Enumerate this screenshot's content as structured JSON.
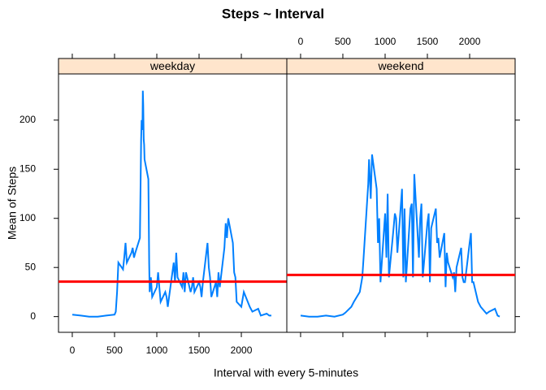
{
  "chart_data": {
    "type": "line",
    "title": "Steps ~ Interval",
    "x_label": "Interval with every 5-minutes",
    "y_label": "Mean of Steps",
    "xlim": [
      -163,
      2538
    ],
    "ylim": [
      -16,
      247
    ],
    "xticks": [
      0,
      500,
      1000,
      1500,
      2000
    ],
    "yticks": [
      0,
      50,
      100,
      150,
      200
    ],
    "line_color": "#0080ff",
    "mean_line_color": "#ff0000",
    "strip_color": "#ffe5cc",
    "series": [
      {
        "name": "weekday",
        "mean": 35.6,
        "x": [
          0,
          100,
          200,
          300,
          400,
          500,
          515,
          530,
          545,
          600,
          615,
          630,
          645,
          700,
          715,
          730,
          745,
          800,
          815,
          820,
          830,
          835,
          840,
          845,
          850,
          855,
          900,
          905,
          910,
          915,
          930,
          945,
          1000,
          1015,
          1030,
          1045,
          1100,
          1115,
          1130,
          1145,
          1200,
          1215,
          1230,
          1245,
          1300,
          1315,
          1330,
          1345,
          1400,
          1415,
          1430,
          1445,
          1500,
          1515,
          1530,
          1545,
          1600,
          1615,
          1630,
          1645,
          1700,
          1715,
          1730,
          1745,
          1800,
          1815,
          1830,
          1845,
          1900,
          1915,
          1930,
          1945,
          2000,
          2030,
          2100,
          2130,
          2200,
          2230,
          2300,
          2330,
          2355
        ],
        "values": [
          2,
          1,
          0,
          0,
          1,
          2,
          5,
          25,
          55,
          48,
          60,
          75,
          55,
          65,
          70,
          60,
          65,
          80,
          180,
          200,
          190,
          230,
          215,
          180,
          175,
          160,
          140,
          100,
          55,
          25,
          40,
          20,
          30,
          45,
          30,
          15,
          25,
          20,
          10,
          20,
          55,
          35,
          65,
          40,
          30,
          45,
          25,
          45,
          25,
          30,
          40,
          25,
          35,
          30,
          20,
          35,
          75,
          50,
          40,
          20,
          35,
          20,
          45,
          30,
          70,
          95,
          80,
          100,
          75,
          45,
          40,
          15,
          10,
          25,
          10,
          5,
          8,
          1,
          3,
          1,
          1
        ]
      },
      {
        "name": "weekend",
        "mean": 42.4,
        "x": [
          0,
          100,
          200,
          300,
          400,
          500,
          530,
          600,
          630,
          700,
          730,
          745,
          800,
          810,
          830,
          845,
          900,
          915,
          930,
          945,
          1000,
          1015,
          1030,
          1045,
          1100,
          1115,
          1130,
          1145,
          1200,
          1215,
          1230,
          1245,
          1300,
          1315,
          1330,
          1345,
          1400,
          1415,
          1430,
          1445,
          1500,
          1515,
          1530,
          1545,
          1600,
          1615,
          1630,
          1645,
          1700,
          1715,
          1730,
          1745,
          1800,
          1815,
          1830,
          1845,
          1900,
          1915,
          1930,
          1945,
          2000,
          2015,
          2030,
          2045,
          2100,
          2130,
          2200,
          2230,
          2300,
          2330,
          2355
        ],
        "values": [
          1,
          0,
          0,
          1,
          0,
          2,
          4,
          10,
          15,
          25,
          40,
          60,
          135,
          160,
          120,
          165,
          130,
          75,
          100,
          35,
          105,
          60,
          125,
          40,
          90,
          105,
          100,
          65,
          130,
          40,
          110,
          35,
          110,
          115,
          40,
          145,
          60,
          100,
          115,
          40,
          95,
          105,
          35,
          90,
          110,
          75,
          80,
          60,
          85,
          30,
          65,
          55,
          40,
          45,
          25,
          50,
          70,
          40,
          35,
          35,
          75,
          85,
          35,
          35,
          15,
          10,
          3,
          5,
          8,
          1,
          0
        ]
      }
    ]
  }
}
